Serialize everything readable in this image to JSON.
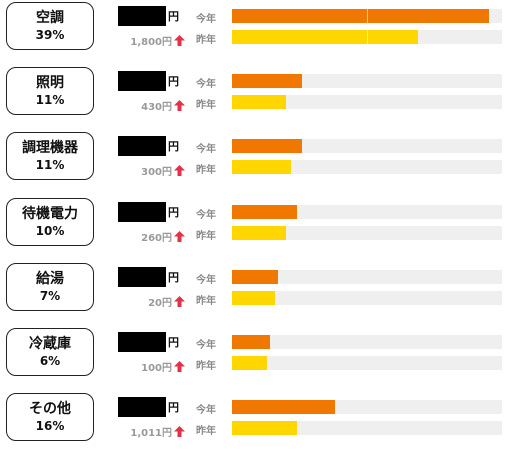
{
  "labels": {
    "this_year": "今年",
    "last_year": "昨年",
    "yen": "円"
  },
  "colors": {
    "this_year": "#f07800",
    "last_year": "#ffd600",
    "arrow": "#e0334a"
  },
  "max_value": 1,
  "categories": [
    {
      "name": "空調",
      "percent": "39%",
      "diff": "1,800円",
      "arrow": "up",
      "this_year_ratio": 0.95,
      "last_year_ratio": 0.69
    },
    {
      "name": "照明",
      "percent": "11%",
      "diff": "430円",
      "arrow": "up",
      "this_year_ratio": 0.26,
      "last_year_ratio": 0.2
    },
    {
      "name": "調理機器",
      "percent": "11%",
      "diff": "300円",
      "arrow": "up",
      "this_year_ratio": 0.26,
      "last_year_ratio": 0.22
    },
    {
      "name": "待機電力",
      "percent": "10%",
      "diff": "260円",
      "arrow": "up",
      "this_year_ratio": 0.24,
      "last_year_ratio": 0.2
    },
    {
      "name": "給湯",
      "percent": "7%",
      "diff": "20円",
      "arrow": "up",
      "this_year_ratio": 0.17,
      "last_year_ratio": 0.16
    },
    {
      "name": "冷蔵庫",
      "percent": "6%",
      "diff": "100円",
      "arrow": "up",
      "this_year_ratio": 0.14,
      "last_year_ratio": 0.13
    },
    {
      "name": "その他",
      "percent": "16%",
      "diff": "1,011円",
      "arrow": "up",
      "this_year_ratio": 0.38,
      "last_year_ratio": 0.24
    }
  ]
}
